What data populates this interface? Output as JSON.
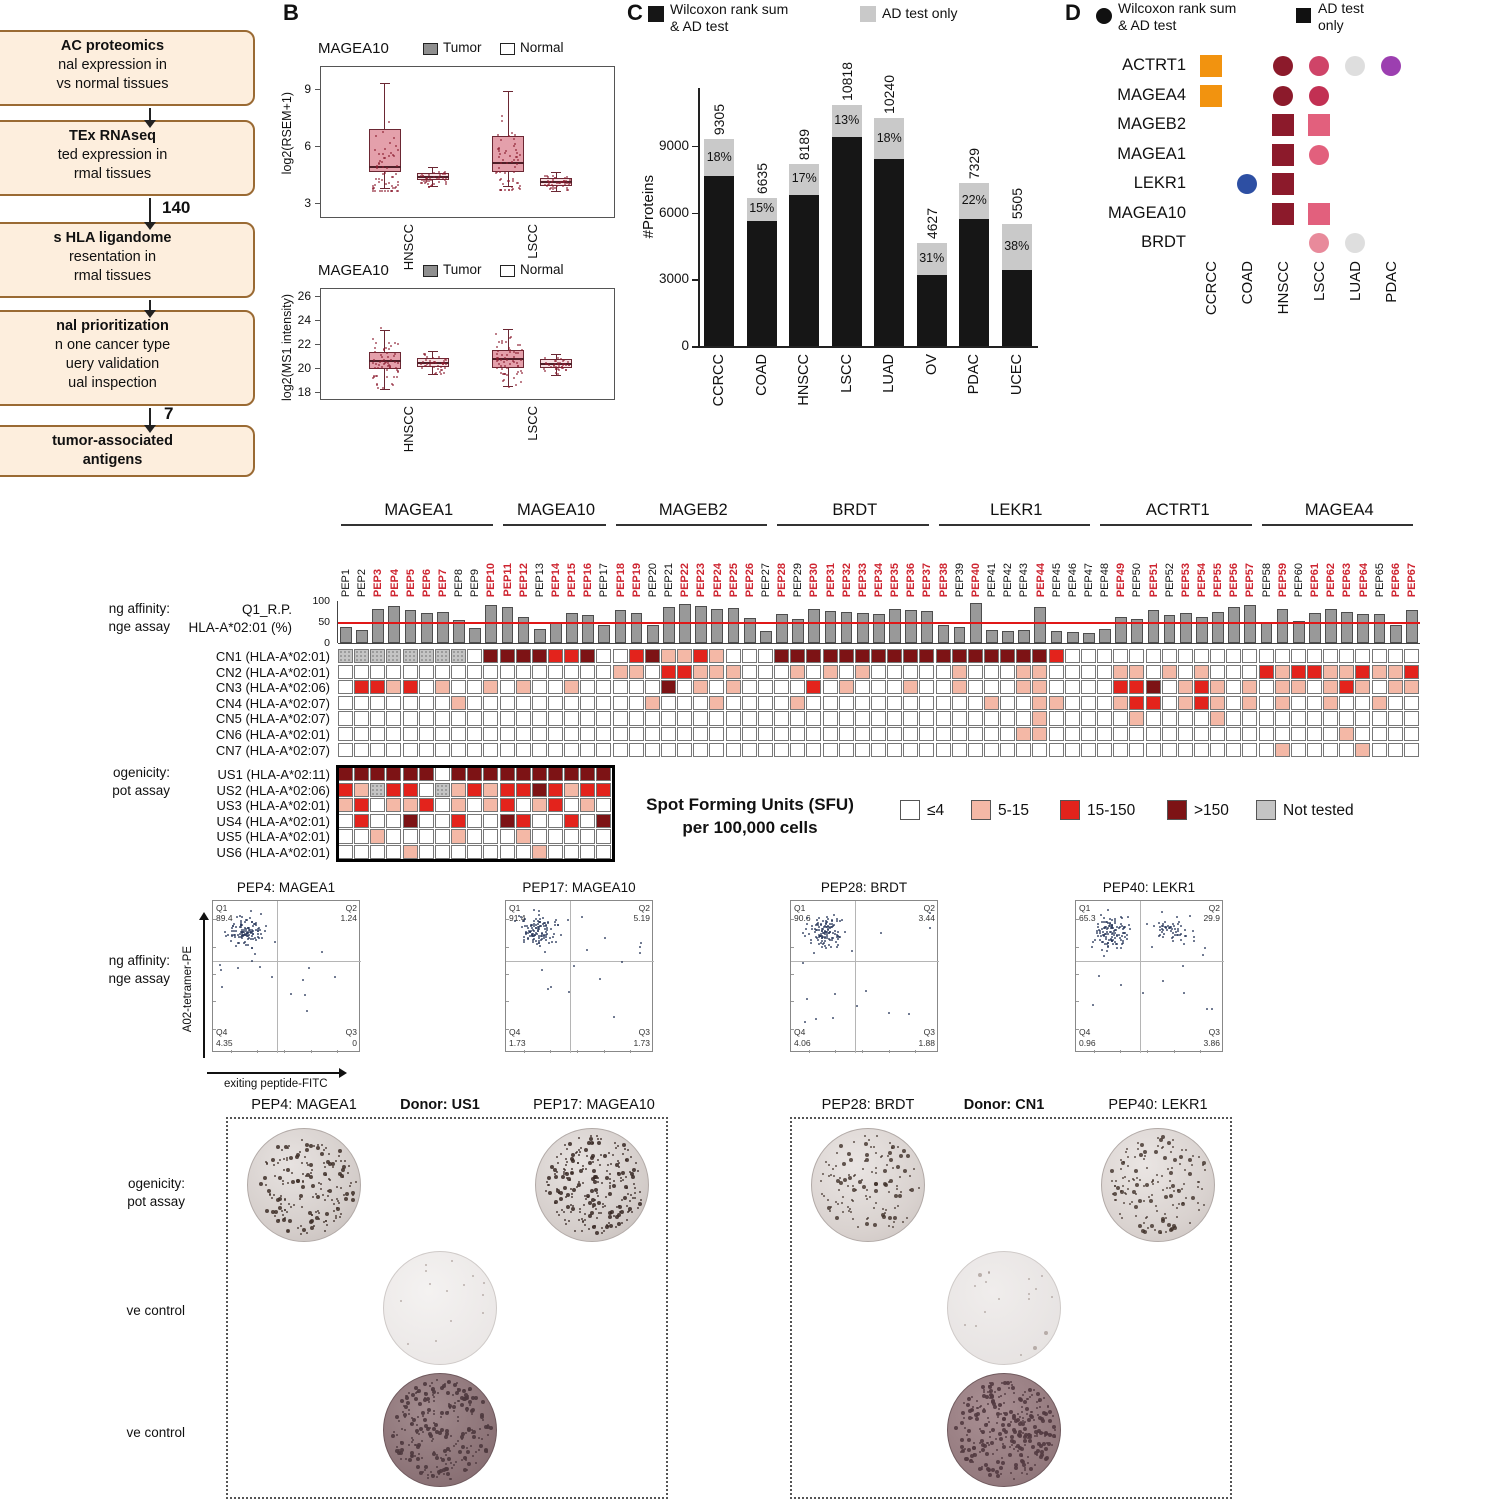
{
  "panelA": {
    "boxes": [
      {
        "lines": [
          "AC proteomics",
          "nal expression in",
          "vs normal tissues"
        ]
      },
      {
        "lines": [
          "TEx RNAseq",
          "ted expression in",
          "rmal tissues"
        ]
      },
      {
        "lines": [
          "s HLA ligandome",
          "resentation in",
          "rmal tissues"
        ]
      },
      {
        "lines": [
          "nal prioritization",
          "n one cancer type",
          "uery validation",
          "ual inspection"
        ]
      },
      {
        "lines": [
          "tumor-associated",
          "antigens"
        ]
      }
    ],
    "counts": [
      "140",
      "7"
    ]
  },
  "panelB": {
    "label": "B",
    "legend": {
      "tumor": "Tumor",
      "normal": "Normal"
    },
    "chart_data": [
      {
        "type": "boxplot",
        "title": "MAGEA10",
        "ylabel": "log2(RSEM+1)",
        "yticks": [
          3,
          6,
          9
        ],
        "ylim": [
          2.2,
          10.2
        ],
        "groups": [
          "HNSCC",
          "LSCC"
        ],
        "series": [
          {
            "group": "HNSCC",
            "cond": "Tumor",
            "lo": 3.8,
            "q1": 4.6,
            "med": 4.9,
            "q3": 6.9,
            "hi": 9.3
          },
          {
            "group": "HNSCC",
            "cond": "Normal",
            "lo": 3.9,
            "q1": 4.2,
            "med": 4.35,
            "q3": 4.55,
            "hi": 4.9
          },
          {
            "group": "LSCC",
            "cond": "Tumor",
            "lo": 3.9,
            "q1": 4.6,
            "med": 5.1,
            "q3": 6.5,
            "hi": 8.9
          },
          {
            "group": "LSCC",
            "cond": "Normal",
            "lo": 3.6,
            "q1": 3.9,
            "med": 4.1,
            "q3": 4.3,
            "hi": 4.6
          }
        ]
      },
      {
        "type": "boxplot",
        "title": "MAGEA10",
        "ylabel": "log2(MS1 intensity)",
        "yticks": [
          18,
          20,
          22,
          24,
          26
        ],
        "ylim": [
          17.3,
          26.7
        ],
        "groups": [
          "HNSCC",
          "LSCC"
        ],
        "series": [
          {
            "group": "HNSCC",
            "cond": "Tumor",
            "lo": 18.2,
            "q1": 19.9,
            "med": 20.6,
            "q3": 21.3,
            "hi": 23.2
          },
          {
            "group": "HNSCC",
            "cond": "Normal",
            "lo": 19.5,
            "q1": 20.1,
            "med": 20.4,
            "q3": 20.8,
            "hi": 21.4
          },
          {
            "group": "LSCC",
            "cond": "Tumor",
            "lo": 18.5,
            "q1": 20.0,
            "med": 20.7,
            "q3": 21.5,
            "hi": 23.3
          },
          {
            "group": "LSCC",
            "cond": "Normal",
            "lo": 19.4,
            "q1": 20.0,
            "med": 20.3,
            "q3": 20.7,
            "hi": 21.2
          }
        ]
      }
    ]
  },
  "panelC": {
    "label": "C",
    "legend": [
      {
        "color": "#161616",
        "lines": [
          "Wilcoxon rank sum",
          "& AD test"
        ]
      },
      {
        "color": "#c9c9c9",
        "lines": [
          "AD test only"
        ]
      }
    ],
    "chart_data": {
      "type": "bar",
      "ylabel": "#Proteins",
      "yticks": [
        0,
        3000,
        6000,
        9000
      ],
      "ylim": [
        0,
        11600
      ],
      "categories": [
        "CCRCC",
        "COAD",
        "HNSCC",
        "LSCC",
        "LUAD",
        "OV",
        "PDAC",
        "UCEC"
      ],
      "totals": [
        9305,
        6635,
        8189,
        10818,
        10240,
        4627,
        7329,
        5505
      ],
      "ad_only_pct": [
        18,
        15,
        17,
        13,
        18,
        31,
        22,
        38
      ]
    }
  },
  "panelD": {
    "label": "D",
    "legend": [
      {
        "shape": "circle",
        "lines": [
          "Wilcoxon rank sum",
          "& AD test"
        ]
      },
      {
        "shape": "square",
        "lines": [
          "AD test",
          "only"
        ]
      }
    ],
    "rows": [
      "ACTRT1",
      "MAGEA4",
      "MAGEB2",
      "MAGEA1",
      "LEKR1",
      "MAGEA10",
      "BRDT"
    ],
    "cols": [
      "CCRCC",
      "COAD",
      "HNSCC",
      "LSCC",
      "LUAD",
      "PDAC"
    ],
    "marks": [
      {
        "r": 0,
        "c": 0,
        "shape": "square",
        "color": "#f2930f"
      },
      {
        "r": 0,
        "c": 2,
        "shape": "circle",
        "color": "#8c1a2b"
      },
      {
        "r": 0,
        "c": 3,
        "shape": "circle",
        "color": "#cf4468"
      },
      {
        "r": 0,
        "c": 4,
        "shape": "circle",
        "color": "#dedede"
      },
      {
        "r": 0,
        "c": 5,
        "shape": "circle",
        "color": "#9c3fb0"
      },
      {
        "r": 1,
        "c": 0,
        "shape": "square",
        "color": "#f2930f"
      },
      {
        "r": 1,
        "c": 2,
        "shape": "circle",
        "color": "#8c1a2b"
      },
      {
        "r": 1,
        "c": 3,
        "shape": "circle",
        "color": "#c23053"
      },
      {
        "r": 2,
        "c": 2,
        "shape": "square",
        "color": "#8c1a2b"
      },
      {
        "r": 2,
        "c": 3,
        "shape": "square",
        "color": "#e2607d"
      },
      {
        "r": 3,
        "c": 2,
        "shape": "square",
        "color": "#8c1a2b"
      },
      {
        "r": 3,
        "c": 3,
        "shape": "circle",
        "color": "#e2607d"
      },
      {
        "r": 4,
        "c": 1,
        "shape": "circle",
        "color": "#2d4fa3"
      },
      {
        "r": 4,
        "c": 2,
        "shape": "square",
        "color": "#8c1a2b"
      },
      {
        "r": 5,
        "c": 2,
        "shape": "square",
        "color": "#8c1a2b"
      },
      {
        "r": 5,
        "c": 3,
        "shape": "square",
        "color": "#e2607d"
      },
      {
        "r": 6,
        "c": 3,
        "shape": "circle",
        "color": "#e88a9b"
      },
      {
        "r": 6,
        "c": 4,
        "shape": "circle",
        "color": "#dedede"
      }
    ]
  },
  "panelE": {
    "gene_groups": [
      {
        "name": "MAGEA1",
        "start": 1,
        "end": 10
      },
      {
        "name": "MAGEA10",
        "start": 11,
        "end": 17
      },
      {
        "name": "MAGEB2",
        "start": 18,
        "end": 27
      },
      {
        "name": "BRDT",
        "start": 28,
        "end": 37
      },
      {
        "name": "LEKR1",
        "start": 38,
        "end": 47
      },
      {
        "name": "ACTRT1",
        "start": 48,
        "end": 57
      },
      {
        "name": "MAGEA4",
        "start": 58,
        "end": 67
      }
    ],
    "n_peptides": 67,
    "peptide_prefix": "PEP",
    "red_peptides": [
      3,
      4,
      5,
      6,
      7,
      10,
      11,
      12,
      14,
      15,
      16,
      18,
      19,
      22,
      23,
      24,
      25,
      26,
      28,
      30,
      31,
      32,
      33,
      34,
      35,
      36,
      37,
      38,
      40,
      44,
      49,
      51,
      53,
      54,
      55,
      56,
      57,
      59,
      61,
      62,
      63,
      64,
      66,
      67
    ],
    "affinity_label_lines": [
      "ng affinity:",
      "nge assay"
    ],
    "immuno_label_lines": [
      "ogenicity:",
      "pot assay"
    ],
    "bar_row": {
      "label_line1": "Q1_R.P.",
      "label_line2": "HLA-A*02:01 (%)",
      "ticks": [
        0,
        50,
        100
      ],
      "threshold": 50,
      "values": [
        38,
        30,
        82,
        88,
        78,
        72,
        75,
        55,
        35,
        90,
        86,
        62,
        34,
        48,
        72,
        66,
        42,
        78,
        72,
        44,
        86,
        92,
        88,
        82,
        84,
        60,
        28,
        68,
        58,
        80,
        76,
        74,
        72,
        70,
        82,
        78,
        76,
        44,
        38,
        95,
        32,
        28,
        30,
        86,
        28,
        26,
        24,
        34,
        62,
        58,
        78,
        66,
        72,
        62,
        74,
        86,
        90,
        48,
        82,
        52,
        72,
        80,
        74,
        70,
        68,
        44,
        78
      ]
    },
    "cn_rows": [
      {
        "name": "CN1 (HLA-A*02:01)",
        "cells": "GGGGGGGGWDDDDRRDWWRDPPRPWWWDDDDDDDDDDDDDDDDDRWWWWWWWWWWWWWWWWWWWWWW"
      },
      {
        "name": "CN2 (HLA-A*02:01)",
        "cells": "WWWWWWWWWWWWWWWWWPPWRRPPPWWWPWPWPWWWWWPWWWPPWWWWPPWPWPWWWRPRRPPRPPR"
      },
      {
        "name": "CN3 (HLA-A*02:06)",
        "cells": "WRRPRWPWWPWPWWPWWWWWDWPWPWWWWRWPWWWPWWPWWWPPWWWWRRDWPRPWPWPPWPRPWPP"
      },
      {
        "name": "CN4 (HLA-A*02:07)",
        "cells": "WWWWWWWPWWWWWWWWWWWPWWWPWWWWPWWWWWWWWWW WPWWPPWWWPRRWPRPWPWPWWPWWPWW"
      },
      {
        "name": "CN5 (HLA-A*02:07)",
        "cells": "WWWWWWWWWWWWWWWWWWWWWWWWWWWWWWWWWWWWWWWWWWWPWWWWWPWWWWPWWWWWWWWWWWW"
      },
      {
        "name": "CN6 (HLA-A*02:01)",
        "cells": "WWWWWWWWWWWWWWWWWWWWWWWWWWWWWWWWWWWWWWWWWWPPWWWWWWWWWWWWWWWWWWPWWWW"
      },
      {
        "name": "CN7 (HLA-A*02:07)",
        "cells": "WWWWWWWWWWWWWWWWWWWWWWWWWWWWWWWWWWWWWWWWWWWWWWWWWWWWWWWWWWPWWWWPWWW"
      }
    ],
    "us_rows": [
      {
        "name": "US1 (HLA-A*02:11)",
        "cells": "DDDDDDWDDDDDDDDDD"
      },
      {
        "name": "US2 (HLA-A*02:06)",
        "cells": "RPGRRWGPRPRRDRPRR"
      },
      {
        "name": "US3 (HLA-A*02:01)",
        "cells": "PRWPPRWPWPRWPRWPW"
      },
      {
        "name": "US4 (HLA-A*02:01)",
        "cells": "WRWWDWWRWWDRWWRWD"
      },
      {
        "name": "US5 (HLA-A*02:01)",
        "cells": "WWPWWWWPWWWPWWWWW"
      },
      {
        "name": "US6 (HLA-A*02:01)",
        "cells": "WWWWPWWWWWWWPWWWW"
      }
    ],
    "cell_colors": {
      "W": "#ffffff",
      "P": "#f4b8a6",
      "R": "#e3231c",
      "D": "#7d1315",
      "G": "#c4c4c4"
    },
    "sfu_legend": {
      "title_line1": "Spot Forming Units (SFU)",
      "title_line2": "per 100,000 cells",
      "items": [
        {
          "label": "≤4",
          "color": "#ffffff"
        },
        {
          "label": "5-15",
          "color": "#f4b8a6"
        },
        {
          "label": "15-150",
          "color": "#e3231c"
        },
        {
          "label": ">150",
          "color": "#7d1315"
        },
        {
          "label": "Not tested",
          "color": "#c4c4c4"
        }
      ]
    }
  },
  "flow": {
    "ylabel": "A02-tetramer-PE",
    "xlabel": "exiting peptide-FITC",
    "panels": [
      {
        "title": "PEP4: MAGEA1",
        "Q1": "89.4",
        "Q2": "1.24",
        "Q3": "0",
        "Q4": "4.35",
        "extra_cluster": false
      },
      {
        "title": "PEP17: MAGEA10",
        "Q1": "91.4",
        "Q2": "5.19",
        "Q3": "1.73",
        "Q4": "1.73",
        "extra_cluster": false
      },
      {
        "title": "PEP28: BRDT",
        "Q1": "90.6",
        "Q2": "3.44",
        "Q3": "1.88",
        "Q4": "4.06",
        "extra_cluster": false
      },
      {
        "title": "PEP40: LEKR1",
        "Q1": "65.3",
        "Q2": "29.9",
        "Q3": "3.86",
        "Q4": "0.96",
        "extra_cluster": true
      }
    ]
  },
  "elispot": {
    "groups": [
      {
        "titles": [
          "PEP4: MAGEA1",
          "Donor: US1",
          "PEP17: MAGEA10"
        ]
      },
      {
        "titles": [
          "PEP28: BRDT",
          "Donor: CN1",
          "PEP40: LEKR1"
        ]
      }
    ]
  },
  "left_labels": {
    "affinity": [
      "ng affinity:",
      "nge assay"
    ],
    "immuno": [
      "ogenicity:",
      "pot assay"
    ],
    "neg": "ve control",
    "pos": "ve control"
  }
}
